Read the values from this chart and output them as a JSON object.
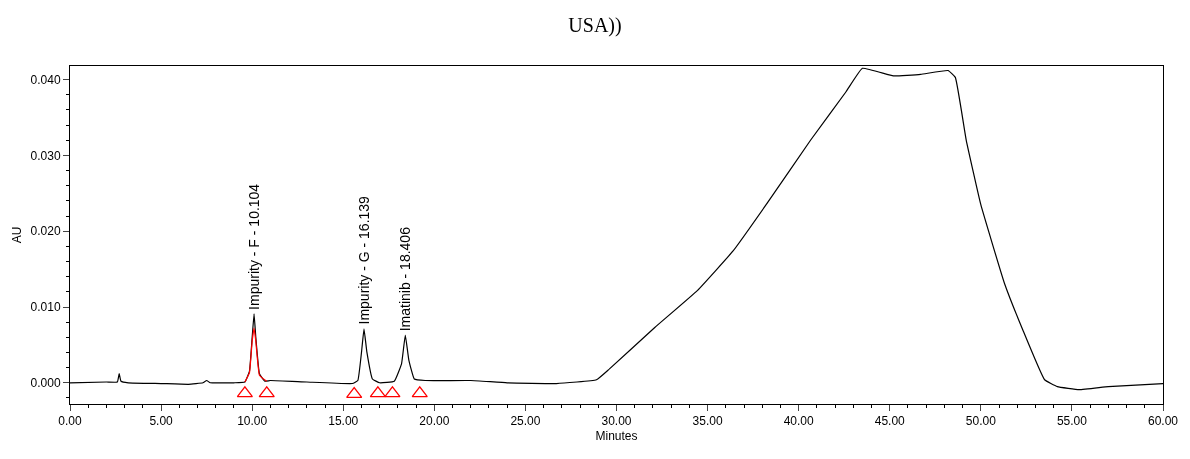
{
  "chart_data": {
    "type": "line",
    "title": "USA))",
    "xlabel": "Minutes",
    "ylabel": "AU",
    "xlim": [
      0,
      60
    ],
    "xticks": [
      {
        "value": 0,
        "label": "0.00"
      },
      {
        "value": 5,
        "label": "5.00"
      },
      {
        "value": 10,
        "label": "10.00"
      },
      {
        "value": 15,
        "label": "15.00"
      },
      {
        "value": 20,
        "label": "20.00"
      },
      {
        "value": 25,
        "label": "25.00"
      },
      {
        "value": 30,
        "label": "30.00"
      },
      {
        "value": 35,
        "label": "35.00"
      },
      {
        "value": 40,
        "label": "40.00"
      },
      {
        "value": 45,
        "label": "45.00"
      },
      {
        "value": 50,
        "label": "50.00"
      },
      {
        "value": 55,
        "label": "55.00"
      },
      {
        "value": 60,
        "label": "60.00"
      }
    ],
    "ylim": [
      -0.0028,
      0.0418
    ],
    "yticks": [
      {
        "value": 0,
        "label": "0.000"
      },
      {
        "value": 0.01,
        "label": "0.010"
      },
      {
        "value": 0.02,
        "label": "0.020"
      },
      {
        "value": 0.03,
        "label": "0.030"
      },
      {
        "value": 0.04,
        "label": "0.040"
      }
    ],
    "series": [
      {
        "color": "#000000",
        "marker": "none",
        "x": [
          0,
          2.0,
          2.6,
          2.7,
          2.8,
          3.2,
          5,
          6.5,
          7.3,
          7.5,
          7.7,
          9.0,
          9.6,
          9.85,
          10.0,
          10.104,
          10.2,
          10.4,
          10.7,
          11,
          13,
          15.5,
          15.8,
          16.0,
          16.139,
          16.3,
          16.6,
          17.0,
          17.8,
          18.2,
          18.406,
          18.6,
          18.9,
          19.5,
          22,
          24,
          26.7,
          28.9,
          29.6,
          32.1,
          34.45,
          36.4,
          38.3,
          40.65,
          42.6,
          43.5,
          45.2,
          46.7,
          48.2,
          48.6,
          49.2,
          50.0,
          51.3,
          52.3,
          53.5,
          54.2,
          55.4,
          57.0,
          60
        ],
        "values": [
          0.0,
          0.0001,
          0.0001,
          0.0012,
          0.0002,
          0.0,
          -0.0001,
          -0.0002,
          0.0,
          0.0003,
          0.0,
          0.0,
          0.0001,
          0.0015,
          0.006,
          0.0091,
          0.006,
          0.0012,
          0.0002,
          0.0003,
          0.0001,
          -0.0001,
          0.0003,
          0.004,
          0.0071,
          0.004,
          0.0005,
          0.0,
          0.0002,
          0.0025,
          0.0063,
          0.003,
          0.0005,
          0.0003,
          0.0003,
          0.0,
          -0.0001,
          0.0004,
          0.0018,
          0.0073,
          0.0122,
          0.0174,
          0.0238,
          0.032,
          0.0384,
          0.0415,
          0.0405,
          0.0407,
          0.0412,
          0.0403,
          0.032,
          0.0235,
          0.0131,
          0.007,
          0.0004,
          -0.0005,
          -0.0009,
          -0.0005,
          -0.0001
        ]
      },
      {
        "color": "#ff0000",
        "marker": "none",
        "x": [
          9.6,
          9.85,
          10.0,
          10.104,
          10.2,
          10.4,
          10.8
        ],
        "values": [
          0.0001,
          0.0013,
          0.0055,
          0.0072,
          0.0055,
          0.001,
          0.0002
        ]
      },
      {
        "type": "scatter",
        "color": "#ff0000",
        "marker": "triangle",
        "x": [
          9.6,
          10.8,
          15.6,
          16.9,
          17.7,
          19.2
        ],
        "values": [
          -0.0014,
          -0.0014,
          -0.0015,
          -0.0014,
          -0.0014,
          -0.0014
        ]
      }
    ],
    "annotations": [
      {
        "text": "Impurity - F - 10.104",
        "x": 10.104,
        "y": 0.0091
      },
      {
        "text": "Impurity - G - 16.139",
        "x": 16.139,
        "y": 0.0071
      },
      {
        "text": "Imatinib - 18.406",
        "x": 18.406,
        "y": 0.0063
      }
    ]
  }
}
